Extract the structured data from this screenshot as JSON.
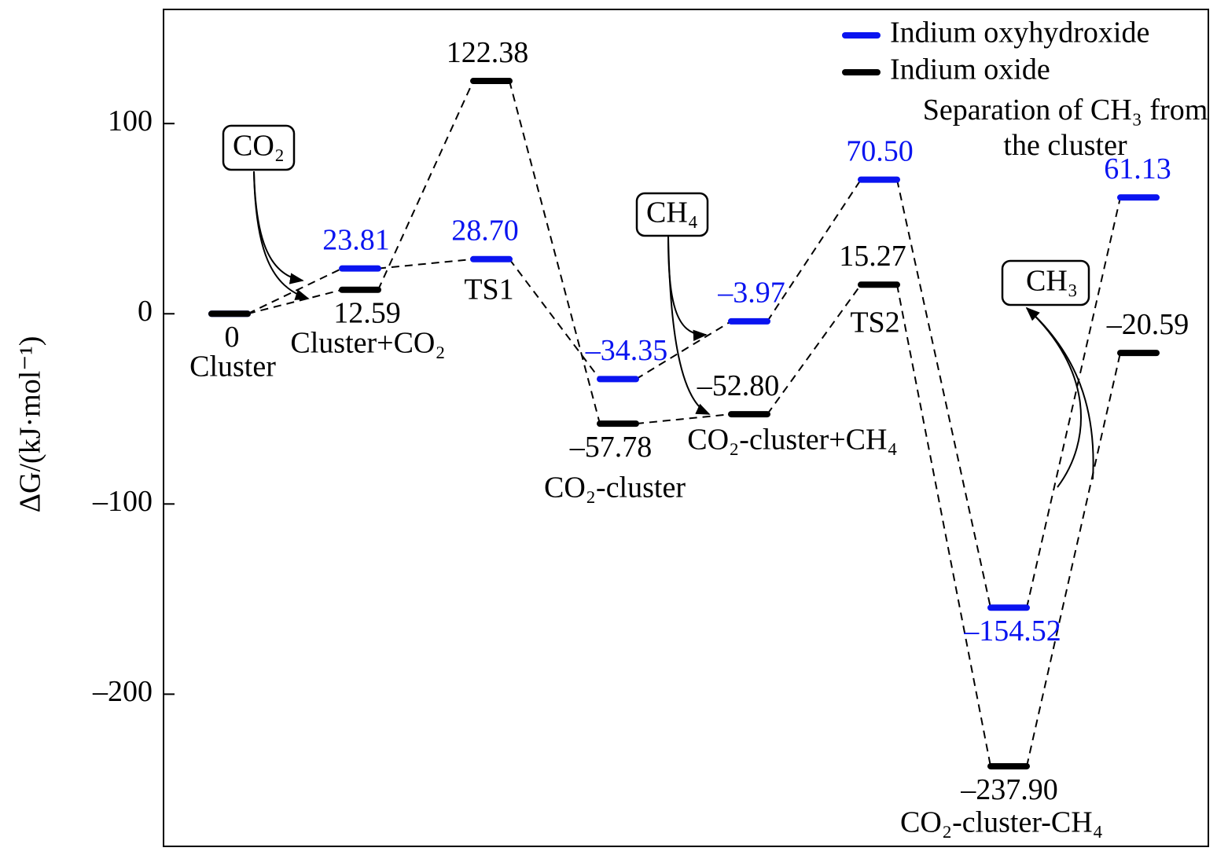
{
  "chart_data": {
    "type": "energy-levels",
    "y_label": "ΔG/(kJ·mol⁻¹)",
    "categories": [
      "Cluster",
      "Cluster+CO₂",
      "TS1",
      "CO₂-cluster",
      "CO₂-cluster+CH₄",
      "TS2",
      "CO₂-cluster-CH₄",
      "Separation of  CH₃ from the cluster"
    ],
    "series": [
      {
        "name": "Indium oxyhydroxide",
        "color": "#0a14f0",
        "values": [
          0,
          23.81,
          28.7,
          -34.35,
          -3.97,
          70.5,
          -154.52,
          61.13
        ],
        "value_labels": [
          null,
          "23.81",
          "28.70",
          "–34.35",
          "–3.97",
          "70.50",
          "–154.52",
          "61.13"
        ]
      },
      {
        "name": "Indium oxide",
        "color": "#000000",
        "values": [
          0,
          12.59,
          122.38,
          -57.78,
          -52.8,
          15.27,
          -237.9,
          -20.59
        ],
        "value_labels": [
          "0",
          "12.59",
          "122.38",
          "–57.78",
          "–52.80",
          "15.27",
          "–237.90",
          "–20.59"
        ]
      }
    ],
    "ylim": [
      -280,
      160
    ],
    "yticks": [
      {
        "value": -200,
        "label": "–200"
      },
      {
        "value": -100,
        "label": "–100"
      },
      0,
      100
    ],
    "annotations": [
      "CO₂",
      "CH₄",
      "CH₃"
    ],
    "legend": "upper right"
  }
}
